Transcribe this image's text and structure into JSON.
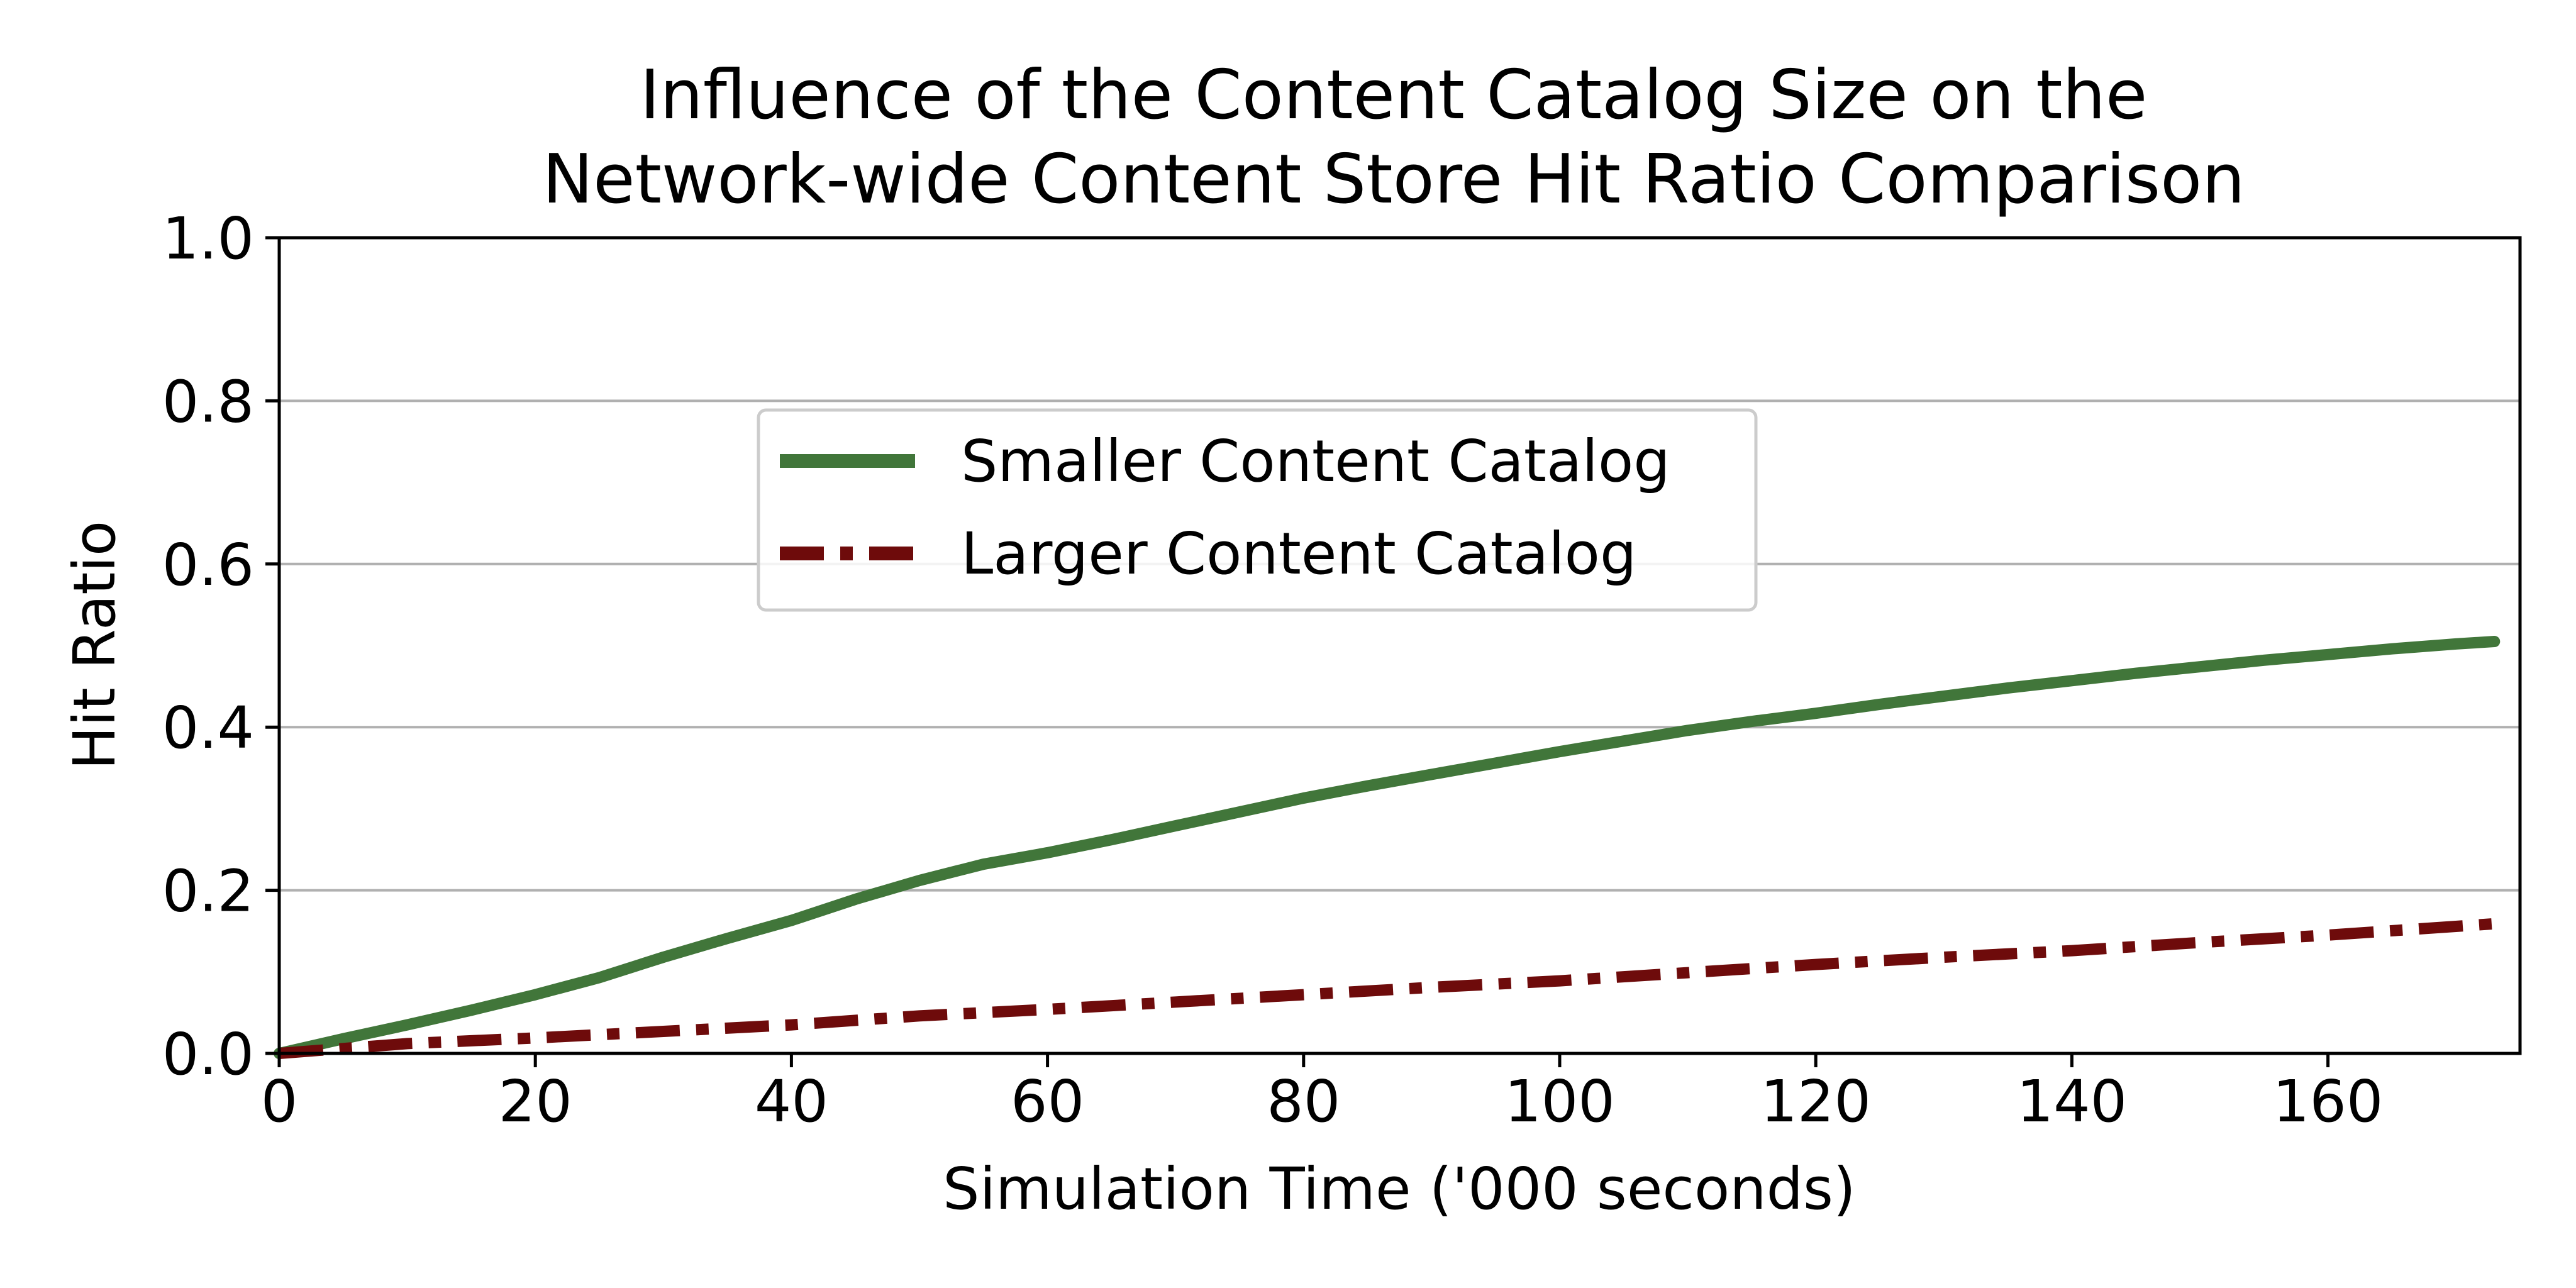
{
  "chart_data": {
    "type": "line",
    "title": "Influence of the Content Catalog Size on the\nNetwork-wide Content Store Hit Ratio Comparison",
    "title_lines": [
      "Influence of the Content Catalog Size on the",
      "Network-wide Content Store Hit Ratio Comparison"
    ],
    "xlabel": "Simulation Time ('000 seconds)",
    "ylabel": "Hit Ratio",
    "xlim": [
      0,
      175
    ],
    "ylim": [
      0,
      1.0
    ],
    "xticks": [
      0,
      20,
      40,
      60,
      80,
      100,
      120,
      140,
      160
    ],
    "xtick_labels": [
      "0",
      "20",
      "40",
      "60",
      "80",
      "100",
      "120",
      "140",
      "160"
    ],
    "yticks": [
      0.0,
      0.2,
      0.4,
      0.6,
      0.8,
      1.0
    ],
    "ytick_labels": [
      "0.0",
      "0.2",
      "0.4",
      "0.6",
      "0.8",
      "1.0"
    ],
    "grid": "horizontal",
    "legend_position": "upper-center",
    "series": [
      {
        "name": "Smaller Content Catalog",
        "color": "#41763A",
        "line_style": "solid",
        "x": [
          0,
          5,
          10,
          15,
          20,
          25,
          30,
          35,
          40,
          45,
          50,
          55,
          60,
          65,
          70,
          75,
          80,
          85,
          90,
          95,
          100,
          105,
          110,
          115,
          120,
          125,
          130,
          135,
          140,
          145,
          150,
          155,
          160,
          165,
          170,
          173
        ],
        "y": [
          0.0,
          0.018,
          0.035,
          0.053,
          0.072,
          0.093,
          0.118,
          0.141,
          0.163,
          0.189,
          0.212,
          0.232,
          0.246,
          0.262,
          0.279,
          0.296,
          0.313,
          0.328,
          0.342,
          0.356,
          0.37,
          0.383,
          0.396,
          0.407,
          0.417,
          0.428,
          0.438,
          0.448,
          0.457,
          0.466,
          0.474,
          0.482,
          0.489,
          0.496,
          0.502,
          0.505
        ]
      },
      {
        "name": "Larger Content Catalog",
        "color": "#6E0B0B",
        "line_style": "dashdot",
        "x": [
          0,
          10,
          20,
          30,
          40,
          50,
          60,
          70,
          80,
          90,
          100,
          110,
          120,
          130,
          140,
          150,
          160,
          173
        ],
        "y": [
          0.0,
          0.012,
          0.019,
          0.027,
          0.035,
          0.046,
          0.054,
          0.063,
          0.072,
          0.081,
          0.089,
          0.099,
          0.109,
          0.118,
          0.126,
          0.136,
          0.145,
          0.159
        ]
      }
    ]
  }
}
